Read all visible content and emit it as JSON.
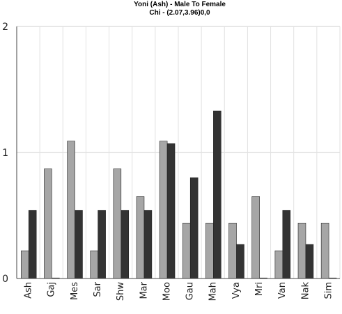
{
  "chart_data": {
    "type": "bar",
    "title": "Yoni (Ash) - Male To Female",
    "subtitle": "Chi - (2.07,3.96)0,0",
    "xlabel": "",
    "ylabel": "",
    "ylim": [
      0,
      2
    ],
    "yticks": [
      "0",
      "1",
      "2"
    ],
    "grid": true,
    "categories": [
      "Ash",
      "Gaj",
      "Mes",
      "Sar",
      "Shw",
      "Mar",
      "Moo",
      "Gau",
      "Mah",
      "Vya",
      "Mri",
      "Van",
      "Nak",
      "Sim"
    ],
    "series": [
      {
        "color": "#a6a6a6",
        "values": [
          0.22,
          0.87,
          1.09,
          0.22,
          0.87,
          0.65,
          1.09,
          0.44,
          0.44,
          0.44,
          0.65,
          0.22,
          0.44,
          0.44
        ]
      },
      {
        "color": "#333333",
        "values": [
          0.54,
          0.0,
          0.54,
          0.54,
          0.54,
          0.54,
          1.07,
          0.8,
          1.33,
          0.27,
          0.0,
          0.54,
          0.27,
          0.0
        ]
      }
    ]
  }
}
